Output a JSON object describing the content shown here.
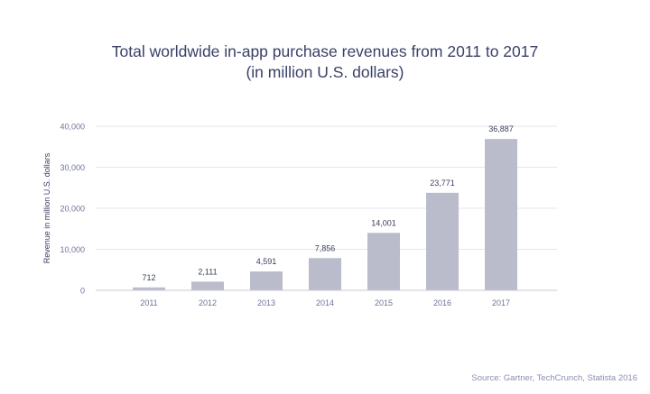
{
  "chart_data": {
    "type": "bar",
    "title": "Total worldwide in-app purchase revenues from 2011 to 2017",
    "subtitle": "(in million U.S. dollars)",
    "xlabel": "",
    "ylabel": "Revenue in million U.S. dollars",
    "categories": [
      "2011",
      "2012",
      "2013",
      "2014",
      "2015",
      "2016",
      "2017"
    ],
    "values": [
      712,
      2111,
      4591,
      7856,
      14001,
      23771,
      36887
    ],
    "data_labels": [
      "712",
      "2,111",
      "4,591",
      "7,856",
      "14,001",
      "23,771",
      "36,887"
    ],
    "ylim": [
      0,
      40000
    ],
    "yticks": [
      0,
      10000,
      20000,
      30000,
      40000
    ],
    "ytick_labels": [
      "0",
      "10,000",
      "20,000",
      "30,000",
      "40,000"
    ],
    "grid": true,
    "legend": "none",
    "colors": {
      "bar": "#bbbccb",
      "grid": "#e6e7ee",
      "axis": "#c9cad6",
      "tick_text": "#6f7496",
      "label_text": "#3a3f5e",
      "title_text": "#3a4068"
    }
  },
  "source": "Source: Gartner, TechCrunch, Statista 2016"
}
